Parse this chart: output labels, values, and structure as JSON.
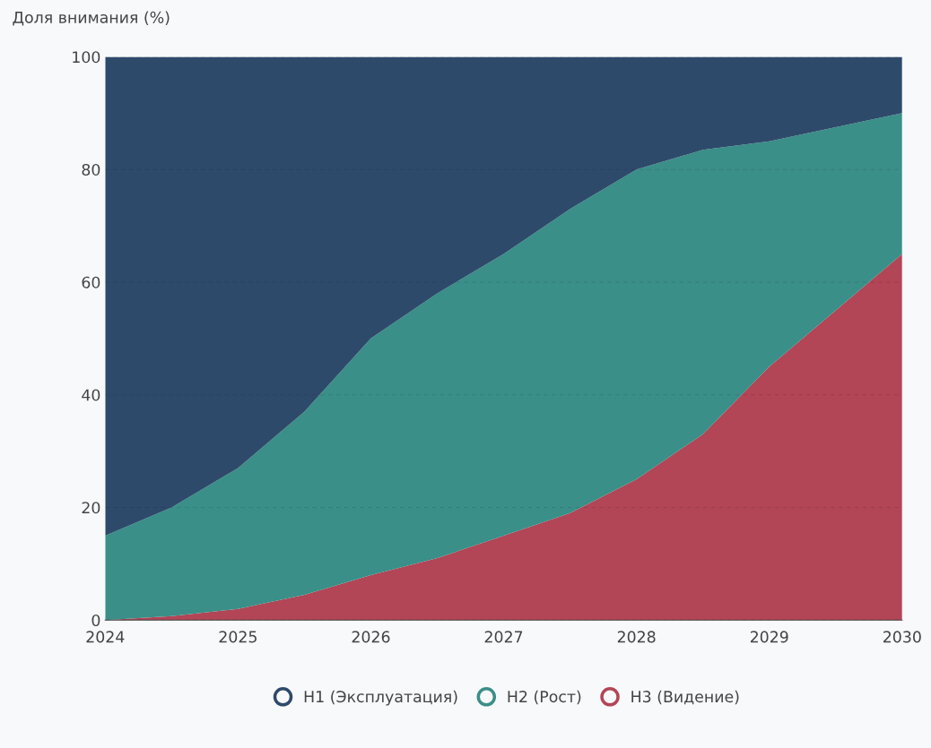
{
  "chart_data": {
    "type": "area",
    "stacked": true,
    "ylabel": "Доля внимания (%)",
    "x": [
      2024,
      2024.5,
      2025,
      2025.5,
      2026,
      2026.5,
      2027,
      2027.5,
      2028,
      2028.5,
      2029,
      2029.5,
      2030
    ],
    "series": [
      {
        "name": "H3 (Видение)",
        "color": "#b24556",
        "values": [
          0,
          0.7,
          2,
          4.5,
          8,
          11,
          15,
          19,
          25,
          33,
          45,
          55,
          65
        ]
      },
      {
        "name": "H2 (Рост)",
        "color": "#3a8f88",
        "values": [
          15,
          19.3,
          25,
          32.5,
          42,
          47,
          50,
          54,
          55,
          50.5,
          40,
          32.5,
          25
        ]
      },
      {
        "name": "H1 (Эксплуатация)",
        "color": "#2e4a6b",
        "values": [
          85,
          80,
          73,
          63,
          50,
          42,
          35,
          27,
          20,
          16.5,
          15,
          12.5,
          10
        ]
      }
    ],
    "xlim": [
      2024,
      2030
    ],
    "xticks": [
      2024,
      2025,
      2026,
      2027,
      2028,
      2029,
      2030
    ],
    "ylim": [
      0,
      100
    ],
    "yticks": [
      0,
      20,
      40,
      60,
      80,
      100
    ],
    "grid": "y",
    "legend": "bottom"
  }
}
